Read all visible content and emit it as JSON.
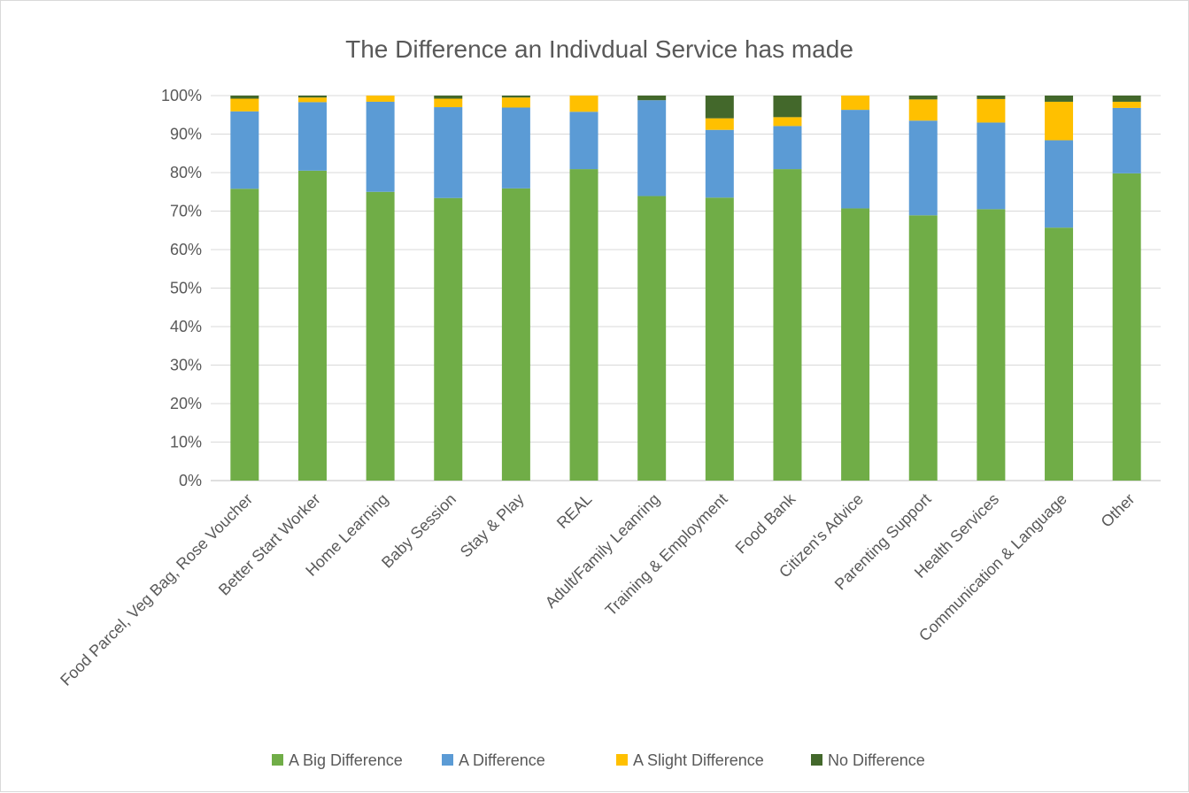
{
  "chart_data": {
    "type": "bar",
    "stacked": true,
    "percent": true,
    "title": "The Difference an Indivdual Service has made",
    "xlabel": "",
    "ylabel": "",
    "ylim": [
      0,
      100
    ],
    "yticks": [
      "0%",
      "10%",
      "20%",
      "30%",
      "40%",
      "50%",
      "60%",
      "70%",
      "80%",
      "90%",
      "100%"
    ],
    "grid": true,
    "legend_position": "bottom",
    "categories": [
      "Food Parcel, Veg Bag, Rose Voucher",
      "Better Start Worker",
      "Home Learning",
      "Baby Session",
      "Stay & Play",
      "REAL",
      "Adult/Family Leanring",
      "Training & Employment",
      "Food Bank",
      "Citizen's Advice",
      "Parenting Support",
      "Health Services",
      "Communication & Language",
      "Other"
    ],
    "series": [
      {
        "name": "A Big Difference",
        "color": "#70ad47",
        "values": [
          75.8,
          80.5,
          75.0,
          73.4,
          75.9,
          80.9,
          73.9,
          73.5,
          80.9,
          70.7,
          68.9,
          70.5,
          65.7,
          79.8
        ]
      },
      {
        "name": "A Difference",
        "color": "#5b9bd5",
        "values": [
          20.1,
          17.8,
          23.4,
          23.6,
          21.0,
          14.9,
          24.9,
          17.6,
          11.2,
          25.6,
          24.6,
          22.5,
          22.7,
          17.0
        ]
      },
      {
        "name": "A Slight Difference",
        "color": "#ffc000",
        "values": [
          3.3,
          1.2,
          1.6,
          2.2,
          2.6,
          4.2,
          0.0,
          3.0,
          2.3,
          3.7,
          5.5,
          6.1,
          10.0,
          1.6
        ]
      },
      {
        "name": "No Difference",
        "color": "#43682b",
        "values": [
          0.8,
          0.5,
          0.0,
          0.8,
          0.5,
          0.0,
          1.2,
          5.9,
          5.6,
          0.0,
          1.0,
          0.9,
          1.6,
          1.6
        ]
      }
    ]
  }
}
